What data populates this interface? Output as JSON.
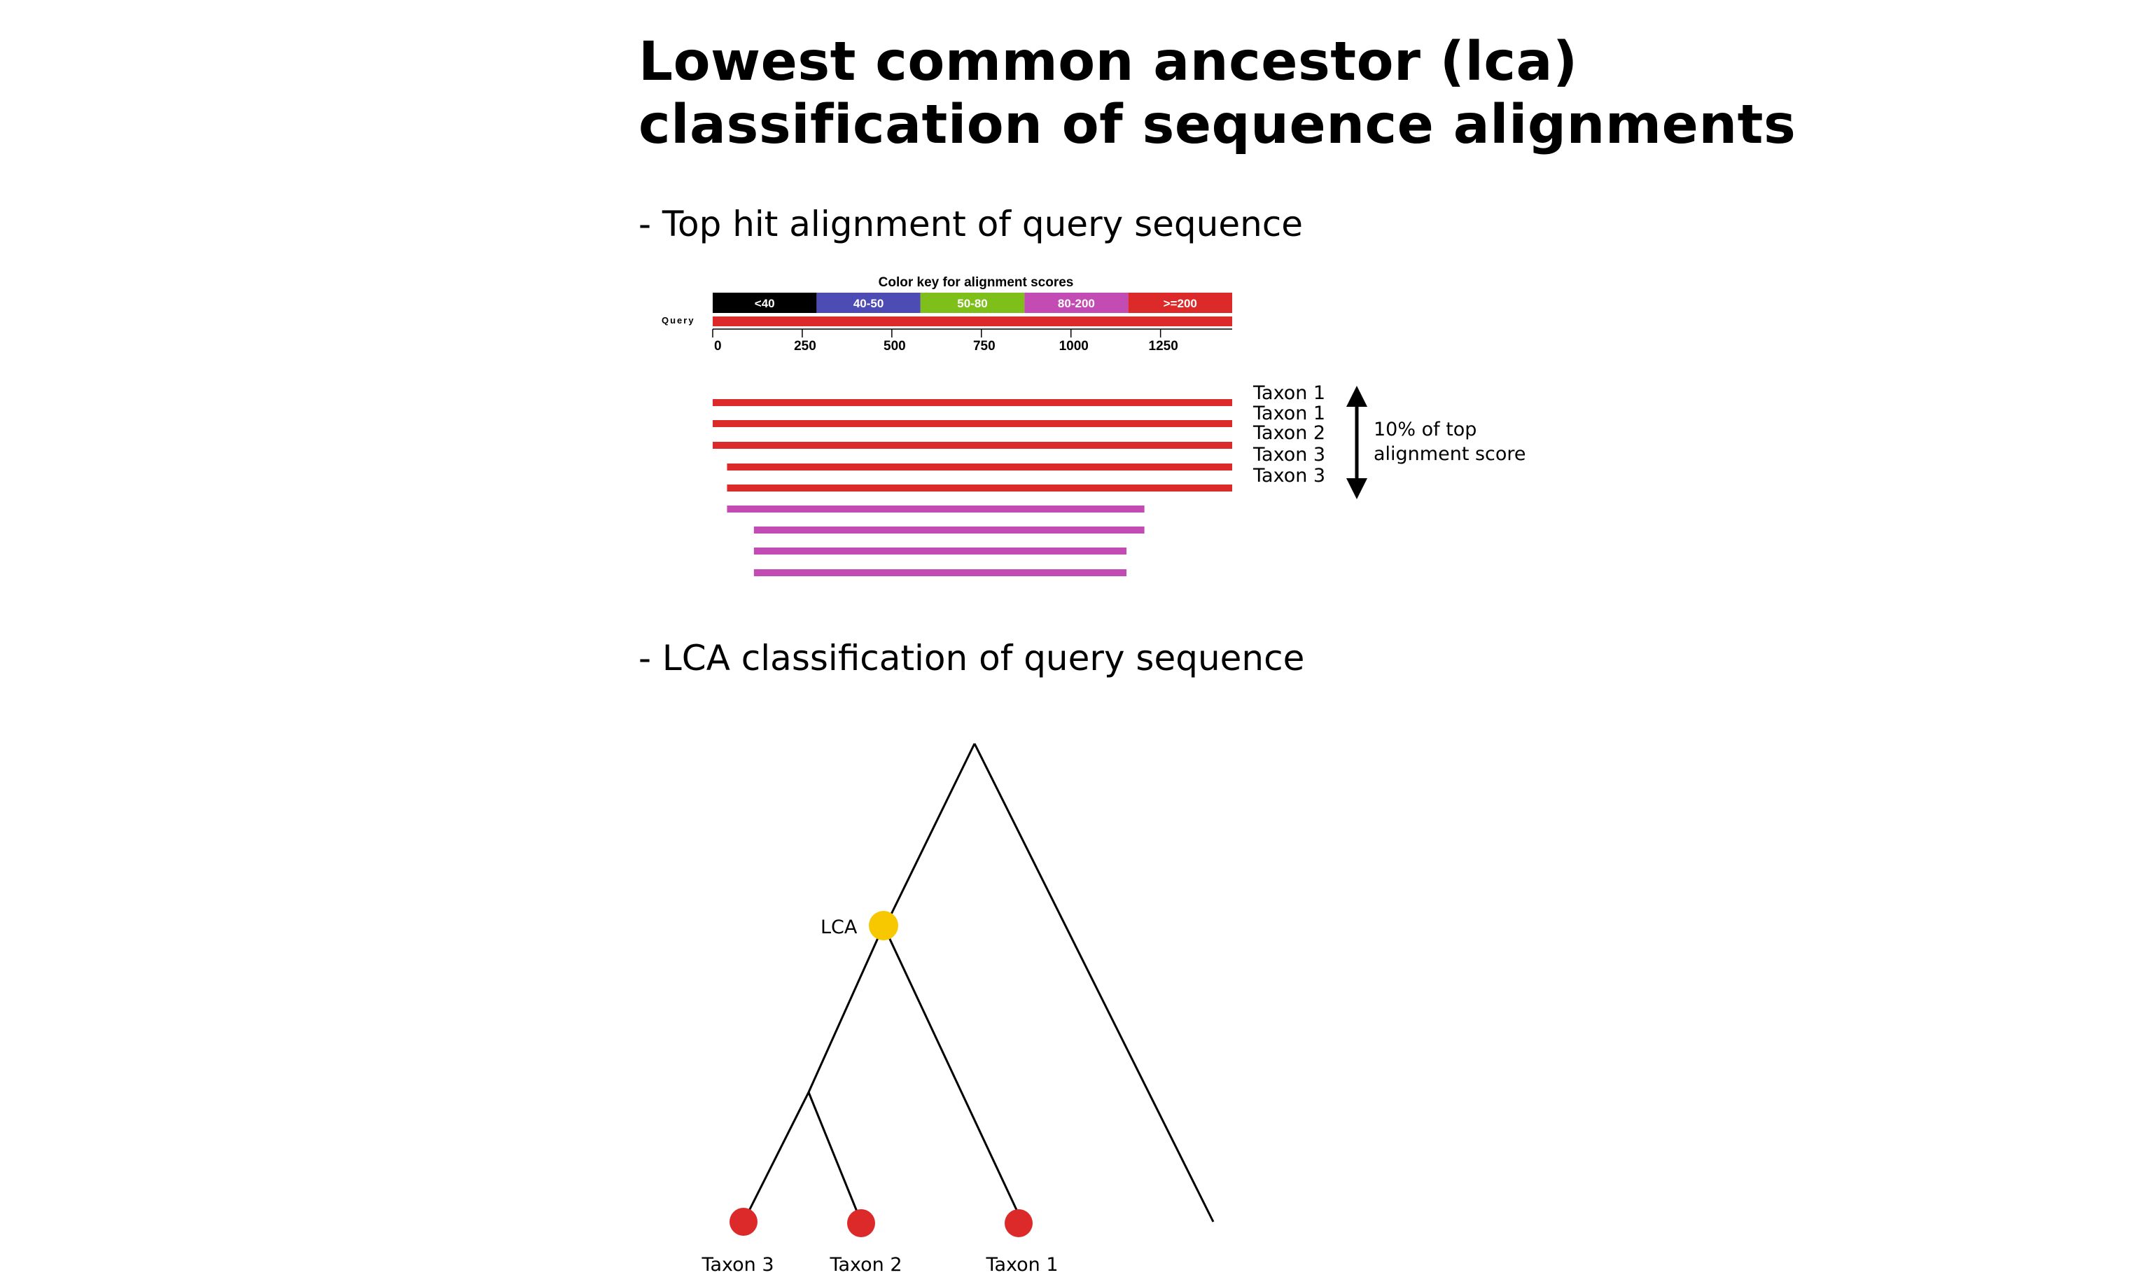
{
  "title": {
    "line1": "Lowest common ancestor (lca)",
    "line2": "classification of sequence alignments"
  },
  "sections": {
    "alignment": "- Top hit alignment of query sequence",
    "lca": "- LCA classification of query sequence"
  },
  "color_key": {
    "title": "Color key for alignment scores",
    "bins": [
      {
        "label": "<40",
        "color": "#000000"
      },
      {
        "label": "40-50",
        "color": "#4c4cb4"
      },
      {
        "label": "50-80",
        "color": "#7fbf1a"
      },
      {
        "label": "80-200",
        "color": "#c24bb4"
      },
      {
        "label": ">=200",
        "color": "#dc2a2a"
      }
    ],
    "query_label": "Query",
    "axis_ticks": [
      {
        "label": "0",
        "value": 0
      },
      {
        "label": "250",
        "value": 250
      },
      {
        "label": "500",
        "value": 500
      },
      {
        "label": "750",
        "value": 750
      },
      {
        "label": "1000",
        "value": 1000
      },
      {
        "label": "1250",
        "value": 1250
      }
    ],
    "axis_max": 1450
  },
  "hits": [
    {
      "start": 0,
      "end": 1450,
      "color": "#dc2a2a",
      "label": "Taxon 1"
    },
    {
      "start": 0,
      "end": 1450,
      "color": "#dc2a2a",
      "label": "Taxon 1"
    },
    {
      "start": 0,
      "end": 1450,
      "color": "#dc2a2a",
      "label": "Taxon 2"
    },
    {
      "start": 40,
      "end": 1450,
      "color": "#dc2a2a",
      "label": "Taxon 3"
    },
    {
      "start": 40,
      "end": 1450,
      "color": "#dc2a2a",
      "label": "Taxon 3"
    },
    {
      "start": 40,
      "end": 1205,
      "color": "#c24bb4",
      "label": ""
    },
    {
      "start": 115,
      "end": 1205,
      "color": "#c24bb4",
      "label": ""
    },
    {
      "start": 115,
      "end": 1155,
      "color": "#c24bb4",
      "label": ""
    },
    {
      "start": 115,
      "end": 1155,
      "color": "#c24bb4",
      "label": ""
    }
  ],
  "threshold_note": {
    "line1": "10% of top",
    "line2": "alignment score"
  },
  "tree": {
    "lca_label": "LCA",
    "lca_color": "#f7c800",
    "leaf_color": "#dc2a2a",
    "leaves": [
      "Taxon 3",
      "Taxon 2",
      "Taxon 1"
    ]
  }
}
